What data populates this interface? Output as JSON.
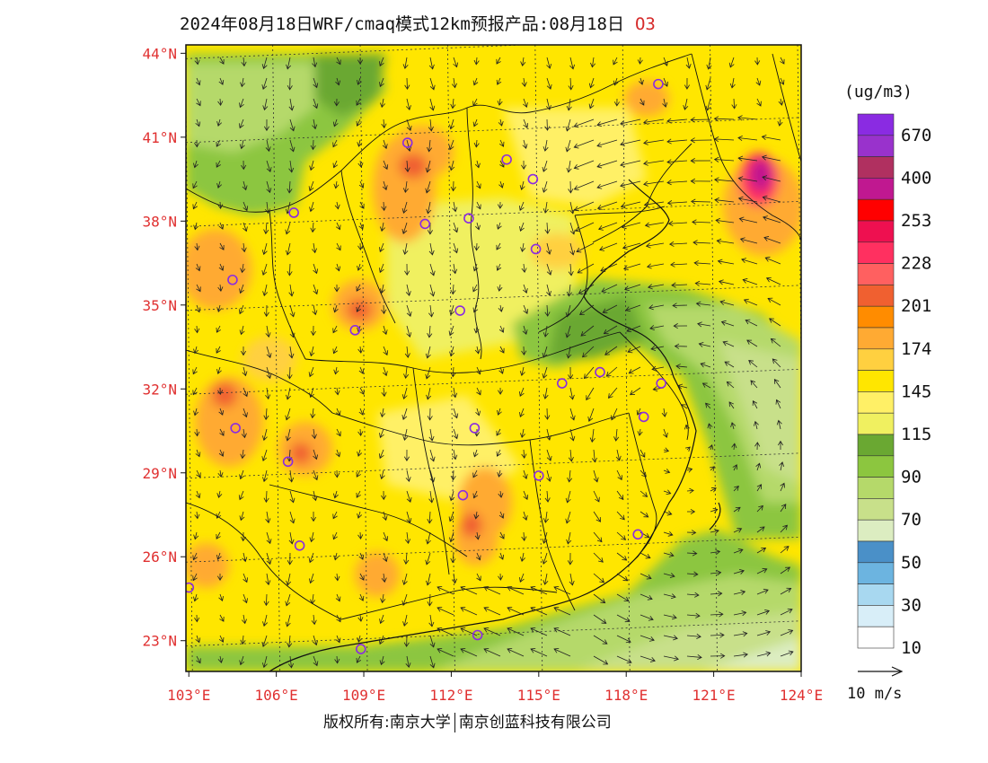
{
  "header": {
    "title": "2024年08月18日WRF/cmaq模式12km预报产品:08月18日",
    "species": "O3"
  },
  "map": {
    "lat_ticks": [
      "44°N",
      "41°N",
      "38°N",
      "35°N",
      "32°N",
      "29°N",
      "26°N",
      "23°N"
    ],
    "lon_ticks": [
      "103°E",
      "106°E",
      "109°E",
      "112°E",
      "115°E",
      "118°E",
      "121°E",
      "124°E"
    ],
    "label_color": "#e03030",
    "lon_range": [
      102.9,
      124.0
    ],
    "lat_range": [
      21.9,
      44.3
    ],
    "cities": [
      {
        "lon": 119.1,
        "lat": 42.9
      },
      {
        "lon": 110.5,
        "lat": 40.8
      },
      {
        "lon": 113.9,
        "lat": 40.2
      },
      {
        "lon": 114.8,
        "lat": 39.5
      },
      {
        "lon": 106.6,
        "lat": 38.3
      },
      {
        "lon": 111.1,
        "lat": 37.9
      },
      {
        "lon": 112.6,
        "lat": 38.1
      },
      {
        "lon": 114.9,
        "lat": 37.0
      },
      {
        "lon": 104.5,
        "lat": 35.9
      },
      {
        "lon": 112.3,
        "lat": 34.8
      },
      {
        "lon": 108.7,
        "lat": 34.1
      },
      {
        "lon": 115.8,
        "lat": 32.2
      },
      {
        "lon": 117.1,
        "lat": 32.6
      },
      {
        "lon": 119.2,
        "lat": 32.2
      },
      {
        "lon": 118.6,
        "lat": 31.0
      },
      {
        "lon": 104.6,
        "lat": 30.6
      },
      {
        "lon": 112.8,
        "lat": 30.6
      },
      {
        "lon": 106.4,
        "lat": 29.4
      },
      {
        "lon": 115.0,
        "lat": 28.9
      },
      {
        "lon": 112.4,
        "lat": 28.2
      },
      {
        "lon": 106.8,
        "lat": 26.4
      },
      {
        "lon": 118.4,
        "lat": 26.8
      },
      {
        "lon": 103.0,
        "lat": 24.9
      },
      {
        "lon": 112.9,
        "lat": 23.2
      },
      {
        "lon": 108.9,
        "lat": 22.7
      }
    ]
  },
  "legend": {
    "unit": "(ug/m3)",
    "colors": [
      "#8a2be2",
      "#9932cc",
      "#b03060",
      "#c01890",
      "#ff0000",
      "#ee1050",
      "#ff3060",
      "#ff6060",
      "#f06030",
      "#ff8c00",
      "#ffaa33",
      "#ffd040",
      "#ffe600",
      "#fff066",
      "#f0f060",
      "#6aa832",
      "#8cc63f",
      "#b5d96a",
      "#c8e08a",
      "#dcedc1",
      "#4a90c8",
      "#6cb4e0",
      "#a8d8f0",
      "#d8eef8",
      "#ffffff"
    ],
    "labels": [
      "670",
      "400",
      "253",
      "228",
      "201",
      "174",
      "145",
      "115",
      "90",
      "70",
      "50",
      "30",
      "10"
    ]
  },
  "wind": {
    "ref_label": "10 m/s"
  },
  "footer": {
    "credit_left": "版权所有:南京大学",
    "credit_right": "南京创蓝科技有限公司"
  }
}
